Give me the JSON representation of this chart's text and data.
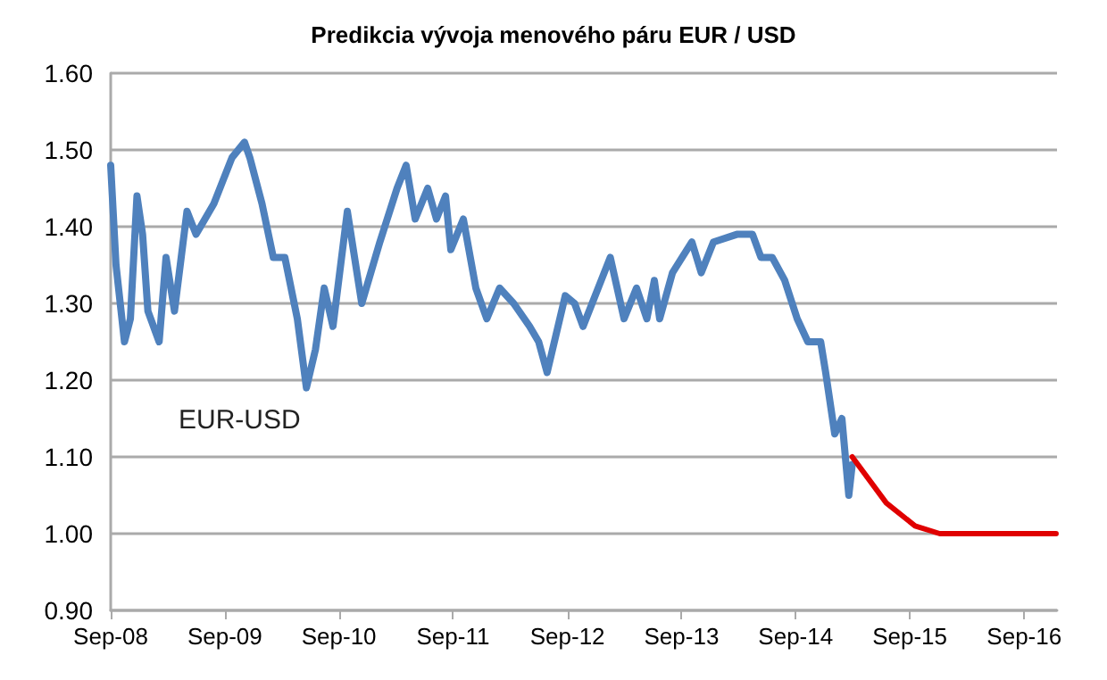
{
  "chart_data": {
    "type": "line",
    "title": "Predikcia vývoja menového páru EUR / USD",
    "xlim": [
      "2008-09-01",
      "2016-12-15"
    ],
    "xticks": [
      {
        "value": "2008-09-01",
        "label": "Sep-08"
      },
      {
        "value": "2009-09-01",
        "label": "Sep-09"
      },
      {
        "value": "2010-09-01",
        "label": "Sep-10"
      },
      {
        "value": "2011-09-01",
        "label": "Sep-11"
      },
      {
        "value": "2012-09-01",
        "label": "Sep-12"
      },
      {
        "value": "2013-09-01",
        "label": "Sep-13"
      },
      {
        "value": "2014-09-01",
        "label": "Sep-14"
      },
      {
        "value": "2015-09-01",
        "label": "Sep-15"
      },
      {
        "value": "2016-09-01",
        "label": "Sep-16"
      }
    ],
    "ylim": [
      0.9,
      1.6
    ],
    "yticks": [
      {
        "value": 0.9,
        "label": "0.90"
      },
      {
        "value": 1.0,
        "label": "1.00"
      },
      {
        "value": 1.1,
        "label": "1.10"
      },
      {
        "value": 1.2,
        "label": "1.20"
      },
      {
        "value": 1.3,
        "label": "1.30"
      },
      {
        "value": 1.4,
        "label": "1.40"
      },
      {
        "value": 1.5,
        "label": "1.50"
      },
      {
        "value": 1.6,
        "label": "1.60"
      }
    ],
    "grid": "y",
    "marker": "none",
    "line_style": "solid",
    "series": [
      {
        "name": "EUR-USD",
        "color": "#4f81bd",
        "x": [
          "2008-09-01",
          "2008-09-18",
          "2008-10-15",
          "2008-11-03",
          "2008-11-24",
          "2008-12-12",
          "2008-12-29",
          "2009-02-03",
          "2009-02-25",
          "2009-03-24",
          "2009-05-03",
          "2009-06-01",
          "2009-07-28",
          "2009-09-24",
          "2009-11-03",
          "2009-11-20",
          "2009-12-29",
          "2010-02-03",
          "2010-03-12",
          "2010-04-21",
          "2010-05-20",
          "2010-06-18",
          "2010-07-16",
          "2010-08-13",
          "2010-09-28",
          "2010-11-13",
          "2011-01-10",
          "2011-03-06",
          "2011-04-04",
          "2011-05-03",
          "2011-06-12",
          "2011-07-10",
          "2011-08-08",
          "2011-08-25",
          "2011-10-04",
          "2011-11-13",
          "2011-12-18",
          "2012-01-28",
          "2012-03-13",
          "2012-05-03",
          "2012-06-01",
          "2012-06-28",
          "2012-08-25",
          "2012-09-24",
          "2012-10-21",
          "2013-01-16",
          "2013-03-01",
          "2013-04-10",
          "2013-05-13",
          "2013-06-06",
          "2013-06-23",
          "2013-08-03",
          "2013-10-04",
          "2013-11-03",
          "2013-12-12",
          "2014-02-25",
          "2014-04-16",
          "2014-05-13",
          "2014-06-18",
          "2014-07-28",
          "2014-09-06",
          "2014-10-10",
          "2014-11-20",
          "2014-12-06",
          "2015-01-04",
          "2015-01-27",
          "2015-02-18",
          "2015-03-01"
        ],
        "values": [
          1.48,
          1.35,
          1.25,
          1.28,
          1.44,
          1.39,
          1.29,
          1.25,
          1.36,
          1.29,
          1.42,
          1.39,
          1.43,
          1.49,
          1.51,
          1.49,
          1.43,
          1.36,
          1.36,
          1.28,
          1.19,
          1.24,
          1.32,
          1.27,
          1.42,
          1.3,
          1.38,
          1.45,
          1.48,
          1.41,
          1.45,
          1.41,
          1.44,
          1.37,
          1.41,
          1.32,
          1.28,
          1.32,
          1.3,
          1.27,
          1.25,
          1.21,
          1.31,
          1.3,
          1.27,
          1.36,
          1.28,
          1.32,
          1.28,
          1.33,
          1.28,
          1.34,
          1.38,
          1.34,
          1.38,
          1.39,
          1.39,
          1.36,
          1.36,
          1.33,
          1.28,
          1.25,
          1.25,
          1.21,
          1.13,
          1.15,
          1.05,
          1.09
        ]
      },
      {
        "color": "#e00000",
        "x": [
          "2015-03-01",
          "2015-06-18",
          "2015-09-18",
          "2015-12-06",
          "2016-12-12"
        ],
        "values": [
          1.1,
          1.04,
          1.01,
          1.0,
          1.0
        ]
      }
    ]
  }
}
